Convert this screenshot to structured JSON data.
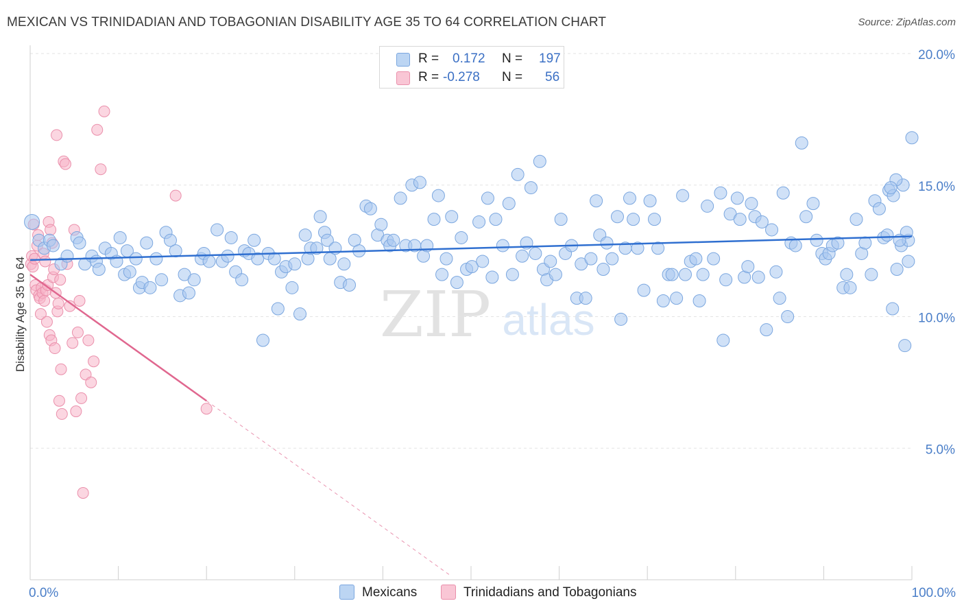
{
  "header": {
    "title": "MEXICAN VS TRINIDADIAN AND TOBAGONIAN DISABILITY AGE 35 TO 64 CORRELATION CHART",
    "source": "Source: ZipAtlas.com"
  },
  "watermark": {
    "zip": "ZIP",
    "atlas": "atlas"
  },
  "legend": {
    "rows": [
      {
        "r_label": "R =",
        "r_value": "0.172",
        "n_label": "N =",
        "n_value": "197"
      },
      {
        "r_label": "R =",
        "r_value": "-0.278",
        "n_label": "N =",
        "n_value": "56"
      }
    ]
  },
  "colors": {
    "blue_fill": "#a9c8f0",
    "blue_stroke": "#7aa6df",
    "blue_line": "#2f6fd0",
    "pink_fill": "#f7b5c8",
    "pink_stroke": "#ea8fab",
    "pink_line": "#e0678f",
    "grid": "#e3e3e3",
    "axis_label": "#4a7ec8"
  },
  "chart_data": {
    "type": "scatter",
    "title": "MEXICAN VS TRINIDADIAN AND TOBAGONIAN DISABILITY AGE 35 TO 64 CORRELATION CHART",
    "xlabel": "",
    "ylabel": "Disability Age 35 to 64",
    "xlim": [
      0,
      100
    ],
    "ylim": [
      0,
      20.0
    ],
    "x_tick_labels": [
      "0.0%",
      "100.0%"
    ],
    "y_ticks": [
      5,
      10,
      15,
      20
    ],
    "y_tick_labels": [
      "5.0%",
      "10.0%",
      "15.0%",
      "20.0%"
    ],
    "legend_position": "bottom-center",
    "series": [
      {
        "name": "Mexicans",
        "color": "#a9c8f0",
        "r": 0.172,
        "n": 197,
        "trend": {
          "x": [
            0,
            100
          ],
          "y": [
            12.15,
            13.05
          ]
        },
        "points": [
          [
            0.2,
            13.6
          ],
          [
            1.0,
            12.9
          ],
          [
            1.6,
            12.6
          ],
          [
            2.2,
            12.9
          ],
          [
            2.6,
            12.7
          ],
          [
            3.5,
            12.0
          ],
          [
            4.2,
            12.3
          ],
          [
            5.3,
            13.0
          ],
          [
            5.6,
            12.8
          ],
          [
            6.2,
            12.0
          ],
          [
            7.0,
            12.3
          ],
          [
            7.5,
            12.1
          ],
          [
            7.8,
            11.8
          ],
          [
            8.5,
            12.6
          ],
          [
            9.2,
            12.4
          ],
          [
            9.8,
            12.1
          ],
          [
            10.2,
            13.0
          ],
          [
            10.7,
            11.6
          ],
          [
            11.0,
            12.5
          ],
          [
            11.3,
            11.7
          ],
          [
            12.0,
            12.2
          ],
          [
            12.4,
            11.1
          ],
          [
            12.7,
            11.3
          ],
          [
            13.2,
            12.8
          ],
          [
            13.6,
            11.1
          ],
          [
            14.3,
            12.2
          ],
          [
            14.9,
            11.4
          ],
          [
            15.4,
            13.2
          ],
          [
            15.9,
            12.9
          ],
          [
            16.5,
            12.5
          ],
          [
            17.0,
            10.8
          ],
          [
            17.5,
            11.6
          ],
          [
            18.0,
            10.9
          ],
          [
            18.6,
            11.4
          ],
          [
            19.4,
            12.2
          ],
          [
            19.7,
            12.4
          ],
          [
            20.3,
            12.1
          ],
          [
            21.2,
            13.3
          ],
          [
            21.8,
            12.1
          ],
          [
            22.4,
            12.3
          ],
          [
            22.8,
            13.0
          ],
          [
            23.3,
            11.7
          ],
          [
            24.0,
            11.4
          ],
          [
            24.3,
            12.5
          ],
          [
            24.8,
            12.4
          ],
          [
            25.4,
            12.9
          ],
          [
            25.8,
            12.2
          ],
          [
            26.4,
            9.1
          ],
          [
            27.0,
            12.4
          ],
          [
            27.7,
            12.2
          ],
          [
            28.1,
            10.3
          ],
          [
            28.5,
            11.7
          ],
          [
            29.0,
            11.9
          ],
          [
            29.7,
            11.1
          ],
          [
            30.0,
            12.0
          ],
          [
            30.6,
            10.1
          ],
          [
            31.2,
            13.1
          ],
          [
            31.5,
            12.2
          ],
          [
            31.8,
            12.6
          ],
          [
            32.5,
            12.6
          ],
          [
            32.9,
            13.8
          ],
          [
            33.4,
            13.2
          ],
          [
            33.7,
            12.9
          ],
          [
            34.0,
            12.2
          ],
          [
            34.6,
            12.6
          ],
          [
            35.2,
            11.3
          ],
          [
            35.6,
            12.0
          ],
          [
            36.2,
            11.2
          ],
          [
            36.8,
            12.9
          ],
          [
            37.3,
            12.5
          ],
          [
            38.1,
            14.2
          ],
          [
            38.6,
            14.1
          ],
          [
            39.4,
            13.1
          ],
          [
            39.8,
            13.5
          ],
          [
            40.5,
            12.9
          ],
          [
            40.8,
            12.7
          ],
          [
            41.2,
            12.9
          ],
          [
            42.0,
            14.5
          ],
          [
            42.6,
            12.7
          ],
          [
            43.3,
            15.0
          ],
          [
            43.6,
            12.7
          ],
          [
            44.2,
            15.1
          ],
          [
            44.6,
            12.3
          ],
          [
            45.0,
            12.7
          ],
          [
            45.8,
            13.7
          ],
          [
            46.3,
            14.6
          ],
          [
            46.7,
            11.6
          ],
          [
            47.2,
            12.2
          ],
          [
            47.8,
            13.8
          ],
          [
            48.4,
            11.3
          ],
          [
            48.9,
            13.0
          ],
          [
            49.5,
            11.8
          ],
          [
            50.1,
            11.9
          ],
          [
            50.9,
            13.6
          ],
          [
            51.3,
            12.1
          ],
          [
            51.9,
            14.5
          ],
          [
            52.4,
            11.5
          ],
          [
            52.8,
            13.7
          ],
          [
            53.6,
            12.7
          ],
          [
            54.3,
            14.3
          ],
          [
            54.7,
            11.6
          ],
          [
            55.3,
            15.4
          ],
          [
            55.8,
            12.3
          ],
          [
            56.3,
            12.8
          ],
          [
            56.8,
            14.9
          ],
          [
            57.3,
            12.4
          ],
          [
            57.8,
            15.9
          ],
          [
            58.2,
            11.8
          ],
          [
            58.6,
            11.4
          ],
          [
            59.0,
            12.1
          ],
          [
            59.6,
            11.6
          ],
          [
            60.2,
            13.7
          ],
          [
            60.7,
            12.4
          ],
          [
            61.4,
            12.7
          ],
          [
            62.0,
            10.7
          ],
          [
            62.5,
            12.0
          ],
          [
            63.0,
            10.7
          ],
          [
            63.6,
            12.2
          ],
          [
            64.2,
            14.4
          ],
          [
            64.6,
            13.1
          ],
          [
            65.0,
            11.8
          ],
          [
            65.4,
            12.8
          ],
          [
            66.0,
            12.2
          ],
          [
            66.6,
            13.8
          ],
          [
            67.0,
            9.9
          ],
          [
            67.5,
            12.6
          ],
          [
            68.0,
            14.5
          ],
          [
            68.4,
            13.7
          ],
          [
            68.9,
            12.6
          ],
          [
            69.6,
            11.0
          ],
          [
            70.3,
            14.4
          ],
          [
            70.8,
            13.7
          ],
          [
            71.2,
            12.6
          ],
          [
            71.8,
            10.6
          ],
          [
            72.4,
            11.6
          ],
          [
            72.8,
            11.6
          ],
          [
            73.3,
            10.7
          ],
          [
            74.0,
            14.6
          ],
          [
            74.3,
            11.6
          ],
          [
            74.9,
            12.1
          ],
          [
            75.5,
            12.2
          ],
          [
            75.9,
            10.6
          ],
          [
            76.3,
            11.6
          ],
          [
            76.8,
            14.2
          ],
          [
            77.5,
            12.2
          ],
          [
            78.3,
            14.7
          ],
          [
            78.6,
            9.1
          ],
          [
            78.9,
            11.4
          ],
          [
            79.4,
            13.9
          ],
          [
            80.2,
            14.5
          ],
          [
            80.5,
            13.7
          ],
          [
            81.0,
            11.5
          ],
          [
            81.4,
            11.9
          ],
          [
            81.8,
            14.3
          ],
          [
            82.2,
            13.8
          ],
          [
            82.6,
            11.5
          ],
          [
            83.0,
            13.6
          ],
          [
            83.5,
            9.5
          ],
          [
            84.1,
            13.3
          ],
          [
            84.6,
            11.7
          ],
          [
            85.0,
            10.7
          ],
          [
            85.4,
            14.7
          ],
          [
            85.9,
            10.0
          ],
          [
            86.3,
            12.8
          ],
          [
            86.8,
            12.7
          ],
          [
            87.5,
            16.6
          ],
          [
            88.0,
            13.8
          ],
          [
            88.8,
            14.3
          ],
          [
            89.2,
            12.9
          ],
          [
            89.8,
            12.4
          ],
          [
            90.2,
            12.2
          ],
          [
            90.6,
            12.4
          ],
          [
            91.0,
            12.7
          ],
          [
            91.6,
            12.8
          ],
          [
            92.2,
            11.1
          ],
          [
            92.6,
            11.6
          ],
          [
            93.0,
            11.1
          ],
          [
            93.7,
            13.7
          ],
          [
            94.3,
            12.4
          ],
          [
            94.7,
            12.8
          ],
          [
            95.4,
            11.6
          ],
          [
            95.8,
            14.4
          ],
          [
            96.3,
            14.1
          ],
          [
            96.8,
            13.0
          ],
          [
            97.4,
            14.8
          ],
          [
            97.8,
            10.3
          ],
          [
            98.3,
            11.8
          ],
          [
            98.8,
            12.7
          ],
          [
            99.2,
            8.9
          ],
          [
            99.6,
            12.1
          ],
          [
            100.0,
            16.8
          ],
          [
            99.6,
            12.9
          ],
          [
            99.4,
            13.2
          ],
          [
            99.0,
            15.0
          ],
          [
            98.6,
            12.9
          ],
          [
            98.2,
            15.2
          ],
          [
            97.9,
            14.6
          ],
          [
            97.6,
            14.9
          ],
          [
            97.2,
            13.1
          ]
        ]
      },
      {
        "name": "Trinidadians and Tobagonians",
        "color": "#f7b5c8",
        "r": -0.278,
        "n": 56,
        "trend": {
          "x": [
            0,
            20
          ],
          "y": [
            11.6,
            6.8
          ]
        },
        "trend_dashed_extension": {
          "x": [
            20,
            47.5
          ],
          "y": [
            6.8,
            0.2
          ]
        },
        "points": [
          [
            0.1,
            12.0
          ],
          [
            0.2,
            12.3
          ],
          [
            0.3,
            11.9
          ],
          [
            0.4,
            13.5
          ],
          [
            0.5,
            12.2
          ],
          [
            0.6,
            11.2
          ],
          [
            0.7,
            11.0
          ],
          [
            0.8,
            12.7
          ],
          [
            0.9,
            13.1
          ],
          [
            1.0,
            10.8
          ],
          [
            1.1,
            10.7
          ],
          [
            1.2,
            10.1
          ],
          [
            1.3,
            11.1
          ],
          [
            1.4,
            10.9
          ],
          [
            1.5,
            12.4
          ],
          [
            1.6,
            10.6
          ],
          [
            1.7,
            12.1
          ],
          [
            1.8,
            11.0
          ],
          [
            1.9,
            9.8
          ],
          [
            2.0,
            11.2
          ],
          [
            2.1,
            13.6
          ],
          [
            2.2,
            9.3
          ],
          [
            2.3,
            13.3
          ],
          [
            2.4,
            9.1
          ],
          [
            2.5,
            12.8
          ],
          [
            2.6,
            11.5
          ],
          [
            2.7,
            11.8
          ],
          [
            2.8,
            8.8
          ],
          [
            2.9,
            10.9
          ],
          [
            3.0,
            16.9
          ],
          [
            3.1,
            10.2
          ],
          [
            3.2,
            10.5
          ],
          [
            3.3,
            6.8
          ],
          [
            3.4,
            11.4
          ],
          [
            3.5,
            8.0
          ],
          [
            3.6,
            6.3
          ],
          [
            3.8,
            15.9
          ],
          [
            4.0,
            15.8
          ],
          [
            4.2,
            12.0
          ],
          [
            4.5,
            10.4
          ],
          [
            4.8,
            9.0
          ],
          [
            5.0,
            13.3
          ],
          [
            5.2,
            6.4
          ],
          [
            5.4,
            9.4
          ],
          [
            5.6,
            10.6
          ],
          [
            5.8,
            6.9
          ],
          [
            6.0,
            3.3
          ],
          [
            6.3,
            7.8
          ],
          [
            6.6,
            9.1
          ],
          [
            6.9,
            7.5
          ],
          [
            7.2,
            8.3
          ],
          [
            7.6,
            17.1
          ],
          [
            8.0,
            15.6
          ],
          [
            8.4,
            17.8
          ],
          [
            16.5,
            14.6
          ],
          [
            20.0,
            6.5
          ]
        ]
      }
    ]
  },
  "bottom_legend": {
    "mexicans": "Mexicans",
    "trinidadians": "Trinidadians and Tobagonians"
  }
}
